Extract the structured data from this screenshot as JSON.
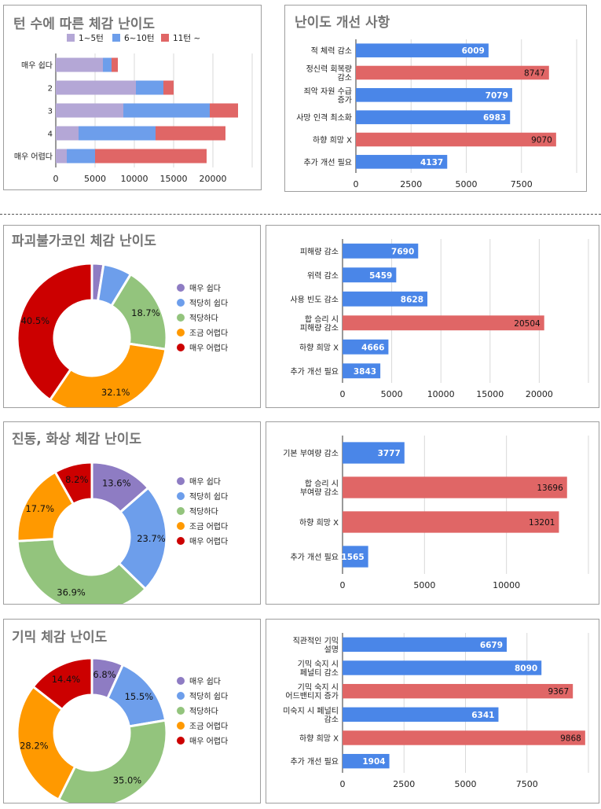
{
  "chart_data": [
    {
      "id": "turn-difficulty",
      "type": "bar",
      "orientation": "horizontal",
      "stacked": true,
      "title": "턴 수에 따른 체감 난이도",
      "categories": [
        "매우 쉽다",
        "2",
        "3",
        "4",
        "매우 어렵다"
      ],
      "series": [
        {
          "name": "1~5턴",
          "color": "#b4a7d6",
          "values": [
            6000,
            10200,
            8600,
            2900,
            1400
          ]
        },
        {
          "name": "6~10턴",
          "color": "#6d9eeb",
          "values": [
            1100,
            3500,
            11000,
            9800,
            3600
          ]
        },
        {
          "name": "11턴 ~",
          "color": "#e06666",
          "values": [
            800,
            1300,
            3600,
            8900,
            14200
          ]
        }
      ],
      "xticks": [
        "0",
        "5000",
        "10000",
        "15000",
        "20000"
      ],
      "xlim": [
        0,
        25000
      ],
      "grid": true,
      "legend": "top"
    },
    {
      "id": "difficulty-improvements",
      "type": "bar",
      "orientation": "horizontal",
      "title": "난이도 개선 사항",
      "categories": [
        "적 체력 감소",
        "정신력 회복량 감소",
        "죄악 자원 수급 증가",
        "사망 인격 최소화",
        "하향 희망 X",
        "추가 개선 필요"
      ],
      "values": [
        6009,
        8747,
        7079,
        6983,
        9070,
        4137
      ],
      "colors": [
        "#4a86e8",
        "#e06666",
        "#4a86e8",
        "#4a86e8",
        "#e06666",
        "#4a86e8"
      ],
      "xticks": [
        "0",
        "2500",
        "5000",
        "7500"
      ],
      "xlim": [
        0,
        10000
      ],
      "grid": true
    },
    {
      "id": "indestructible-coin-pie",
      "type": "pie",
      "donut": true,
      "title": "파괴불가코인 체감 난이도",
      "labels": [
        "매우 쉽다",
        "적당히 쉽다",
        "적당하다",
        "조금 어렵다",
        "매우 어렵다"
      ],
      "values": [
        2.5,
        6.2,
        18.7,
        32.1,
        40.5
      ],
      "display": [
        "",
        "",
        "18.7%",
        "32.1%",
        "40.5%"
      ],
      "colors": [
        "#8e7cc3",
        "#6d9eeb",
        "#93c47d",
        "#ff9900",
        "#cc0000"
      ],
      "legend": "right"
    },
    {
      "id": "indestructible-coin-bar",
      "type": "bar",
      "orientation": "horizontal",
      "categories": [
        "피해량 감소",
        "위력 감소",
        "사용 빈도 감소",
        "합 승리 시 피해량 감소",
        "하향 희망 X",
        "추가 개선 필요"
      ],
      "values": [
        7690,
        5459,
        8628,
        20504,
        4666,
        3843
      ],
      "colors": [
        "#4a86e8",
        "#4a86e8",
        "#4a86e8",
        "#e06666",
        "#4a86e8",
        "#4a86e8"
      ],
      "xticks": [
        "0",
        "5000",
        "10000",
        "15000",
        "20000"
      ],
      "xlim": [
        0,
        25000
      ],
      "grid": true
    },
    {
      "id": "vibration-burn-pie",
      "type": "pie",
      "donut": true,
      "title": "진동, 화상 체감 난이도",
      "labels": [
        "매우 쉽다",
        "적당히 쉽다",
        "적당하다",
        "조금 어렵다",
        "매우 어렵다"
      ],
      "values": [
        13.6,
        23.7,
        36.9,
        17.7,
        8.2
      ],
      "display": [
        "13.6%",
        "23.7%",
        "36.9%",
        "17.7%",
        "8.2%"
      ],
      "colors": [
        "#8e7cc3",
        "#6d9eeb",
        "#93c47d",
        "#ff9900",
        "#cc0000"
      ],
      "legend": "right"
    },
    {
      "id": "vibration-burn-bar",
      "type": "bar",
      "orientation": "horizontal",
      "categories": [
        "기본 부여량 감소",
        "합 승리 시 부여량 감소",
        "하향 희망 X",
        "추가 개선 필요"
      ],
      "values": [
        3777,
        13696,
        13201,
        1565
      ],
      "colors": [
        "#4a86e8",
        "#e06666",
        "#e06666",
        "#4a86e8"
      ],
      "xticks": [
        "0",
        "5000",
        "10000"
      ],
      "xlim": [
        0,
        15000
      ],
      "grid": true
    },
    {
      "id": "gimmick-pie",
      "type": "pie",
      "donut": true,
      "title": "기믹 체감 난이도",
      "labels": [
        "매우 쉽다",
        "적당히 쉽다",
        "적당하다",
        "조금 어렵다",
        "매우 어렵다"
      ],
      "values": [
        6.8,
        15.5,
        35.0,
        28.2,
        14.4
      ],
      "display": [
        "6.8%",
        "15.5%",
        "35.0%",
        "28.2%",
        "14.4%"
      ],
      "colors": [
        "#8e7cc3",
        "#6d9eeb",
        "#93c47d",
        "#ff9900",
        "#cc0000"
      ],
      "legend": "right"
    },
    {
      "id": "gimmick-bar",
      "type": "bar",
      "orientation": "horizontal",
      "categories": [
        "직관적인 기믹 설명",
        "기믹 숙지 시 페널티 감소",
        "기믹 숙지 시 어드밴티지 증가",
        "미숙지 시 페널티 감소",
        "하향 희망 X",
        "추가 개선 필요"
      ],
      "values": [
        6679,
        8090,
        9367,
        6341,
        9868,
        1904
      ],
      "colors": [
        "#4a86e8",
        "#4a86e8",
        "#e06666",
        "#4a86e8",
        "#e06666",
        "#4a86e8"
      ],
      "xticks": [
        "0",
        "2500",
        "5000",
        "7500"
      ],
      "xlim": [
        0,
        10000
      ],
      "grid": true
    }
  ]
}
